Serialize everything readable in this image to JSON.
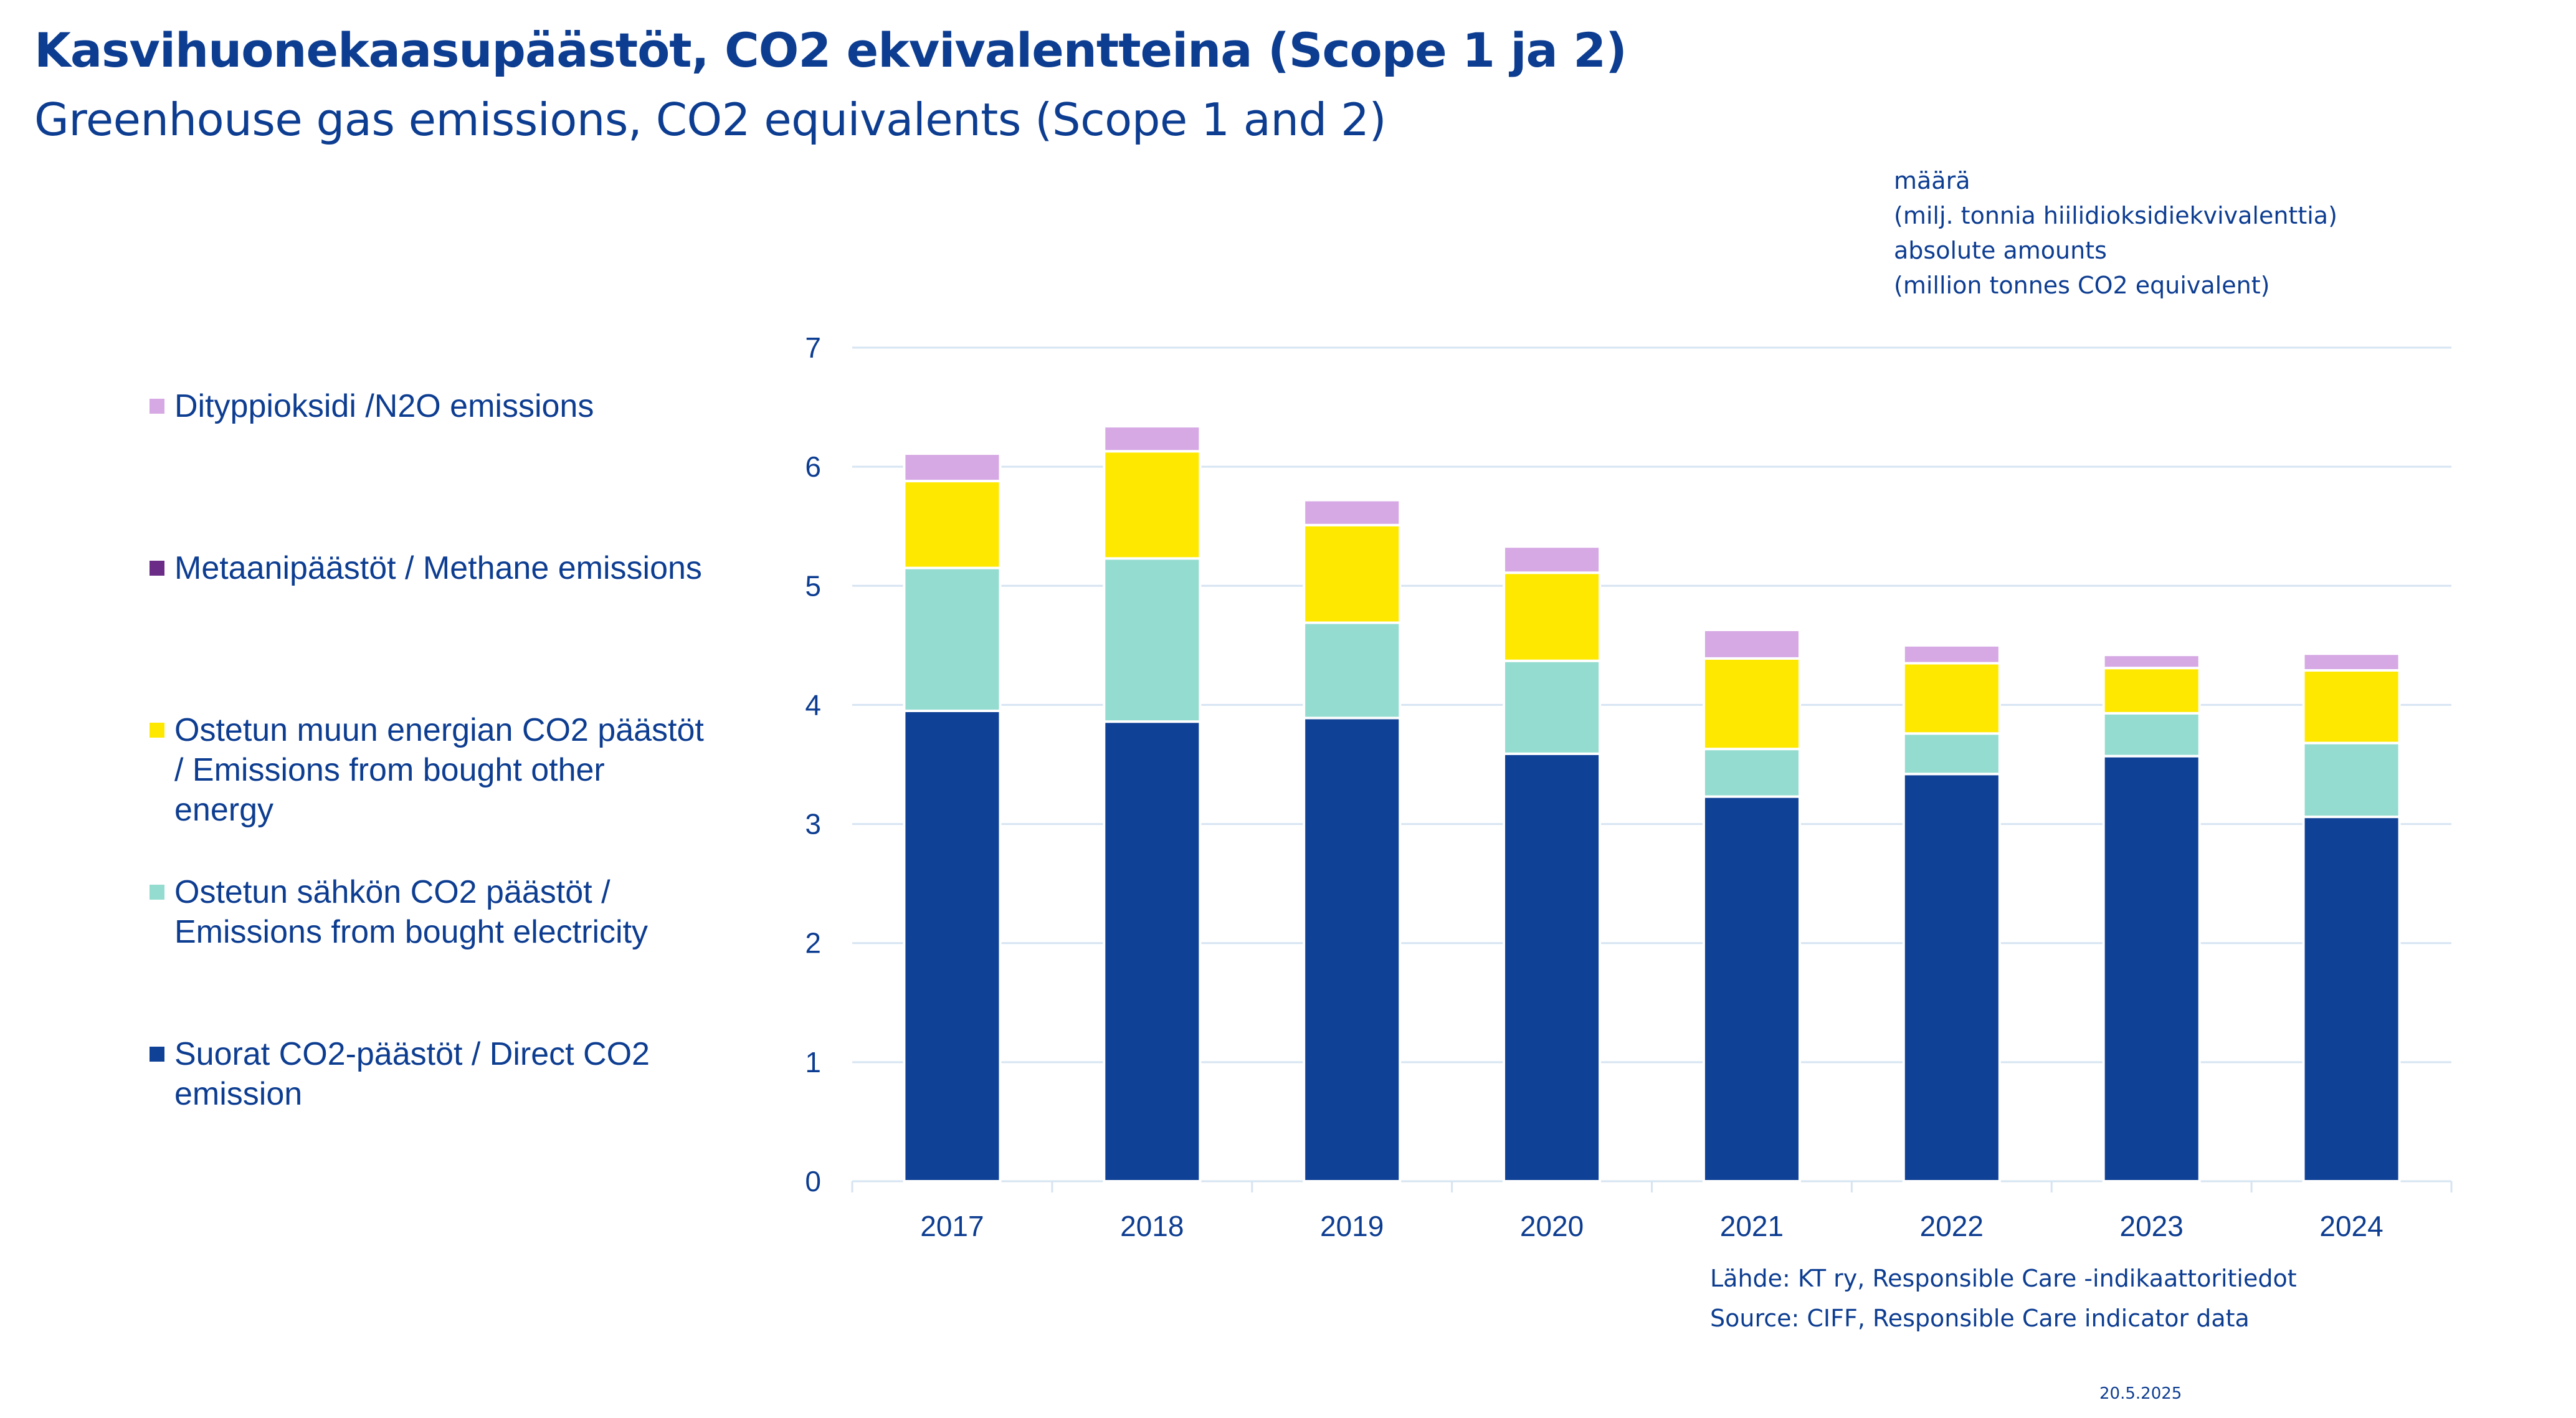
{
  "header": {
    "title_fi": "Kasvihuonekaasupäästöt, CO2 ekvivalentteina (Scope 1 ja 2)",
    "title_en": "Greenhouse gas emissions, CO2 equivalents (Scope 1 and 2)"
  },
  "unit_note": [
    "määrä",
    "(milj. tonnia hiilidioksidiekvivalenttia)",
    "absolute amounts",
    "(million tonnes CO2 equivalent)"
  ],
  "footer": {
    "source_fi": "Lähde: KT ry, Responsible Care -indikaattoritiedot",
    "source_en": "Source: CIFF, Responsible Care indicator data",
    "date": "20.5.2025"
  },
  "chart_data": {
    "type": "bar",
    "stacked": true,
    "categories": [
      "2017",
      "2018",
      "2019",
      "2020",
      "2021",
      "2022",
      "2023",
      "2024"
    ],
    "ylim": [
      0,
      7
    ],
    "yticks": [
      "0",
      "1",
      "2",
      "3",
      "4",
      "5",
      "6",
      "7"
    ],
    "grid": true,
    "legend_position": "left",
    "series": [
      {
        "name": "Suorat CO2-päästöt / Direct CO2 emission",
        "color": "#0f4196",
        "values": [
          3.95,
          3.86,
          3.89,
          3.59,
          3.23,
          3.42,
          3.57,
          3.06
        ]
      },
      {
        "name": "Ostetun sähkön CO2 päästöt / Emissions from bought electricity",
        "color": "#93dccf",
        "values": [
          1.2,
          1.37,
          0.8,
          0.78,
          0.4,
          0.34,
          0.36,
          0.62
        ]
      },
      {
        "name": "Ostetun muun energian CO2 päästöt / Emissions from bought other energy",
        "color": "#ffe800",
        "values": [
          0.73,
          0.9,
          0.82,
          0.74,
          0.76,
          0.59,
          0.38,
          0.61
        ]
      },
      {
        "name": "Metaanipäästöt / Methane emissions",
        "color": "#6a2c86",
        "values": [
          0,
          0,
          0,
          0,
          0,
          0,
          0,
          0
        ]
      },
      {
        "name": "Dityppioksidi /N2O emissions",
        "color": "#d6a8e4",
        "values": [
          0.23,
          0.21,
          0.21,
          0.22,
          0.24,
          0.15,
          0.11,
          0.14
        ]
      }
    ]
  }
}
